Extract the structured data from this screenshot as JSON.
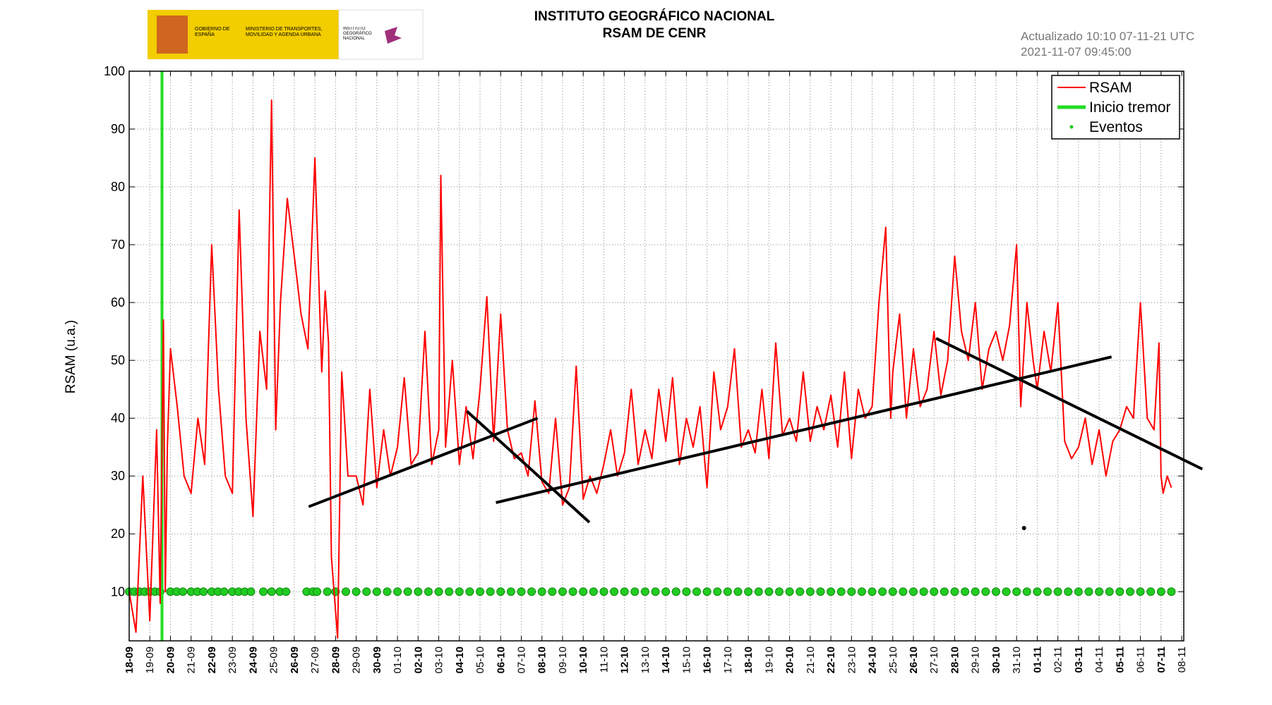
{
  "header": {
    "gov": "GOBIERNO DE ESPAÑA",
    "ministry": "MINISTERIO DE TRANSPORTES, MOVILIDAD Y AGENDA URBANA",
    "institute": "INSTITUTO GEOGRÁFICO NACIONAL"
  },
  "chart_data": {
    "type": "line",
    "title": "INSTITUTO GEOGRÁFICO NACIONAL",
    "subtitle": "RSAM DE CENR",
    "annotations": [
      "Actualizado 10:10 07-11-21 UTC",
      "2021-11-07 09:45:00"
    ],
    "ylabel": "RSAM (u.a.)",
    "xlim": [
      0,
      51.1
    ],
    "ylim": [
      1.5,
      100
    ],
    "yticks": [
      10,
      20,
      30,
      40,
      50,
      60,
      70,
      80,
      90,
      100
    ],
    "xticks": [
      {
        "value": 0,
        "label": "18-09"
      },
      {
        "value": 1,
        "label": "19-09"
      },
      {
        "value": 2,
        "label": "20-09"
      },
      {
        "value": 3,
        "label": "21-09"
      },
      {
        "value": 4,
        "label": "22-09"
      },
      {
        "value": 5,
        "label": "23-09"
      },
      {
        "value": 6,
        "label": "24-09"
      },
      {
        "value": 7,
        "label": "25-09"
      },
      {
        "value": 8,
        "label": "26-09"
      },
      {
        "value": 9,
        "label": "27-09"
      },
      {
        "value": 10,
        "label": "28-09"
      },
      {
        "value": 11,
        "label": "29-09"
      },
      {
        "value": 12,
        "label": "30-09"
      },
      {
        "value": 13,
        "label": "01-10"
      },
      {
        "value": 14,
        "label": "02-10"
      },
      {
        "value": 15,
        "label": "03-10"
      },
      {
        "value": 16,
        "label": "04-10"
      },
      {
        "value": 17,
        "label": "05-10"
      },
      {
        "value": 18,
        "label": "06-10"
      },
      {
        "value": 19,
        "label": "07-10"
      },
      {
        "value": 20,
        "label": "08-10"
      },
      {
        "value": 21,
        "label": "09-10"
      },
      {
        "value": 22,
        "label": "10-10"
      },
      {
        "value": 23,
        "label": "11-10"
      },
      {
        "value": 24,
        "label": "12-10"
      },
      {
        "value": 25,
        "label": "13-10"
      },
      {
        "value": 26,
        "label": "14-10"
      },
      {
        "value": 27,
        "label": "15-10"
      },
      {
        "value": 28,
        "label": "16-10"
      },
      {
        "value": 29,
        "label": "17-10"
      },
      {
        "value": 30,
        "label": "18-10"
      },
      {
        "value": 31,
        "label": "19-10"
      },
      {
        "value": 32,
        "label": "20-10"
      },
      {
        "value": 33,
        "label": "21-10"
      },
      {
        "value": 34,
        "label": "22-10"
      },
      {
        "value": 35,
        "label": "23-10"
      },
      {
        "value": 36,
        "label": "24-10"
      },
      {
        "value": 37,
        "label": "25-10"
      },
      {
        "value": 38,
        "label": "26-10"
      },
      {
        "value": 39,
        "label": "27-10"
      },
      {
        "value": 40,
        "label": "28-10"
      },
      {
        "value": 41,
        "label": "29-10"
      },
      {
        "value": 42,
        "label": "30-10"
      },
      {
        "value": 43,
        "label": "31-10"
      },
      {
        "value": 44,
        "label": "01-11"
      },
      {
        "value": 45,
        "label": "02-11"
      },
      {
        "value": 46,
        "label": "03-11"
      },
      {
        "value": 47,
        "label": "04-11"
      },
      {
        "value": 48,
        "label": "05-11"
      },
      {
        "value": 49,
        "label": "06-11"
      },
      {
        "value": 50,
        "label": "07-11"
      },
      {
        "value": 51,
        "label": "08-11"
      }
    ],
    "grid": true,
    "legend": "upper right",
    "series": [
      {
        "name": "RSAM",
        "color": "#ff0000",
        "x": [
          0,
          0.33,
          0.66,
          1,
          1.33,
          1.5,
          1.66,
          1.75,
          1.85,
          2,
          2.33,
          2.66,
          3,
          3.33,
          3.66,
          4,
          4.33,
          4.66,
          5,
          5.33,
          5.66,
          6,
          6.33,
          6.66,
          6.9,
          7.1,
          7.33,
          7.66,
          8,
          8.33,
          8.66,
          9,
          9.33,
          9.5,
          9.66,
          9.8,
          10.1,
          10.3,
          10.6,
          11,
          11.33,
          11.66,
          12,
          12.33,
          12.66,
          13,
          13.33,
          13.66,
          14,
          14.33,
          14.66,
          15,
          15.1,
          15.33,
          15.66,
          16,
          16.33,
          16.66,
          17,
          17.33,
          17.66,
          18,
          18.33,
          18.66,
          19,
          19.33,
          19.66,
          20,
          20.33,
          20.66,
          21,
          21.33,
          21.66,
          22,
          22.33,
          22.66,
          23,
          23.33,
          23.66,
          24,
          24.33,
          24.66,
          25,
          25.33,
          25.66,
          26,
          26.33,
          26.66,
          27,
          27.33,
          27.66,
          28,
          28.33,
          28.66,
          29,
          29.33,
          29.66,
          30,
          30.33,
          30.66,
          31,
          31.33,
          31.66,
          32,
          32.33,
          32.66,
          33,
          33.33,
          33.66,
          34,
          34.33,
          34.66,
          35,
          35.33,
          35.66,
          36,
          36.33,
          36.66,
          36.9,
          37,
          37.33,
          37.66,
          38,
          38.33,
          38.66,
          39,
          39.33,
          39.66,
          40,
          40.33,
          40.66,
          41,
          41.33,
          41.66,
          42,
          42.33,
          42.66,
          43,
          43.2,
          43.5,
          43.8,
          44,
          44.33,
          44.66,
          45,
          45.33,
          45.66,
          46,
          46.33,
          46.66,
          47,
          47.33,
          47.66,
          48,
          48.33,
          48.66,
          49,
          49.33,
          49.66,
          49.9,
          50,
          50.1,
          50.3,
          50.5
        ],
        "values": [
          10,
          3,
          30,
          5,
          38,
          8,
          57,
          10,
          35,
          52,
          42,
          30,
          27,
          40,
          32,
          70,
          45,
          30,
          27,
          76,
          40,
          23,
          55,
          45,
          95,
          38,
          60,
          78,
          68,
          58,
          52,
          85,
          48,
          62,
          53,
          16,
          2,
          48,
          30,
          30,
          25,
          45,
          28,
          38,
          30,
          35,
          47,
          32,
          34,
          55,
          32,
          38,
          82,
          35,
          50,
          32,
          42,
          33,
          45,
          61,
          36,
          58,
          38,
          33,
          34,
          30,
          43,
          29,
          27,
          40,
          25,
          28,
          49,
          26,
          30,
          27,
          32,
          38,
          30,
          34,
          45,
          32,
          38,
          33,
          45,
          36,
          47,
          32,
          40,
          35,
          42,
          28,
          48,
          38,
          42,
          52,
          35,
          38,
          34,
          45,
          33,
          53,
          37,
          40,
          36,
          48,
          36,
          42,
          38,
          44,
          35,
          48,
          33,
          45,
          40,
          42,
          60,
          73,
          40,
          48,
          58,
          40,
          52,
          42,
          45,
          55,
          44,
          50,
          68,
          55,
          50,
          60,
          45,
          52,
          55,
          50,
          56,
          70,
          42,
          60,
          50,
          45,
          55,
          48,
          60,
          36,
          33,
          35,
          40,
          32,
          38,
          30,
          36,
          38,
          42,
          40,
          60,
          40,
          38,
          53,
          30,
          27,
          30,
          28
        ]
      },
      {
        "name": "Eventos",
        "color": "#22cc22",
        "x": [
          0,
          0.25,
          0.5,
          0.75,
          1,
          1.25,
          1.5,
          2,
          2.3,
          2.6,
          3,
          3.3,
          3.6,
          4,
          4.3,
          4.6,
          5,
          5.3,
          5.6,
          5.9,
          6.5,
          6.9,
          7.3,
          7.6,
          8.6,
          8.9,
          9.1,
          9.6,
          10,
          10.5,
          11,
          11.5,
          12,
          12.5,
          13,
          13.5,
          14,
          14.5,
          15,
          15.5,
          16,
          16.5,
          17,
          17.5,
          18,
          18.5,
          19,
          19.5,
          20,
          20.5,
          21,
          21.5,
          22,
          22.5,
          23,
          23.5,
          24,
          24.5,
          25,
          25.5,
          26,
          26.5,
          27,
          27.5,
          28,
          28.5,
          29,
          29.5,
          30,
          30.5,
          31,
          31.5,
          32,
          32.5,
          33,
          33.5,
          34,
          34.5,
          35,
          35.5,
          36,
          36.5,
          37,
          37.5,
          38,
          38.5,
          39,
          39.5,
          40,
          40.5,
          41,
          41.5,
          42,
          42.5,
          43,
          43.5,
          44,
          44.5,
          45,
          45.5,
          46,
          46.5,
          47,
          47.5,
          48,
          48.5,
          49,
          49.5,
          50,
          50.5
        ],
        "values": [
          10,
          10,
          10,
          10,
          10,
          10,
          10,
          10,
          10,
          10,
          10,
          10,
          10,
          10,
          10,
          10,
          10,
          10,
          10,
          10,
          10,
          10,
          10,
          10,
          10,
          10,
          10,
          10,
          10,
          10,
          10,
          10,
          10,
          10,
          10,
          10,
          10,
          10,
          10,
          10,
          10,
          10,
          10,
          10,
          10,
          10,
          10,
          10,
          10,
          10,
          10,
          10,
          10,
          10,
          10,
          10,
          10,
          10,
          10,
          10,
          10,
          10,
          10,
          10,
          10,
          10,
          10,
          10,
          10,
          10,
          10,
          10,
          10,
          10,
          10,
          10,
          10,
          10,
          10,
          10,
          10,
          10,
          10,
          10,
          10,
          10,
          10,
          10,
          10,
          10,
          10,
          10,
          10,
          10,
          10,
          10,
          10,
          10,
          10,
          10,
          10,
          10,
          10,
          10,
          10,
          10,
          10,
          10,
          10,
          10
        ]
      }
    ],
    "tremor": {
      "name": "Inicio tremor",
      "x": 1.59,
      "color": "#22dd22"
    },
    "trend_lines": [
      {
        "x": [
          8.7,
          19.79
        ],
        "y": [
          24.7,
          40.0
        ]
      },
      {
        "x": [
          16.37,
          22.3
        ],
        "y": [
          41.2,
          22.0
        ]
      },
      {
        "x": [
          17.77,
          47.6
        ],
        "y": [
          25.4,
          50.6
        ]
      },
      {
        "x": [
          39.1,
          52.0
        ],
        "y": [
          53.8,
          31.2
        ]
      }
    ],
    "marker": {
      "x": 43.36,
      "y": 21.0
    }
  }
}
